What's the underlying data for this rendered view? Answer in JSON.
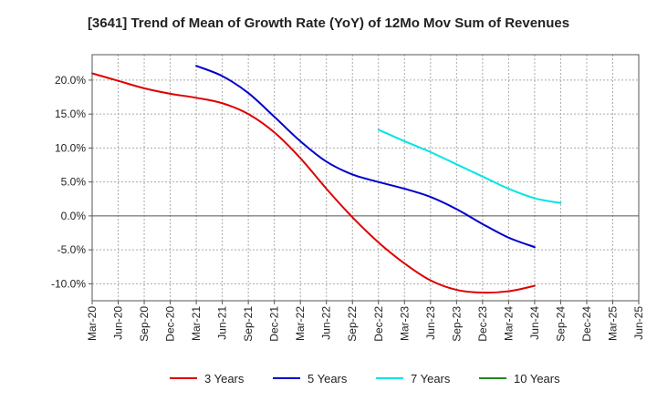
{
  "chart_data": {
    "type": "line",
    "title": "[3641]  Trend of Mean of Growth Rate (YoY) of 12Mo Mov Sum of Revenues",
    "xlabel": "",
    "ylabel": "",
    "ylim": [
      -12.5,
      23.75
    ],
    "y_ticks": [
      -10,
      -5,
      0,
      5,
      10,
      15,
      20
    ],
    "y_tick_labels": [
      "-10.0%",
      "-5.0%",
      "0.0%",
      "5.0%",
      "10.0%",
      "15.0%",
      "20.0%"
    ],
    "categories": [
      "Mar-20",
      "Jun-20",
      "Sep-20",
      "Dec-20",
      "Mar-21",
      "Jun-21",
      "Sep-21",
      "Dec-21",
      "Mar-22",
      "Jun-22",
      "Sep-22",
      "Dec-22",
      "Mar-23",
      "Jun-23",
      "Sep-23",
      "Dec-23",
      "Mar-24",
      "Jun-24",
      "Sep-24",
      "Dec-24",
      "Mar-25",
      "Jun-25"
    ],
    "grid": true,
    "legend_position": "bottom",
    "series": [
      {
        "name": "3 Years",
        "color": "#dd0000",
        "values": [
          21.0,
          19.9,
          18.8,
          18.0,
          17.4,
          16.6,
          15.0,
          12.3,
          8.5,
          4.0,
          -0.2,
          -3.9,
          -7.0,
          -9.5,
          -10.9,
          -11.3,
          -11.1,
          -10.3,
          null,
          null,
          null,
          null
        ]
      },
      {
        "name": "5 Years",
        "color": "#0000cc",
        "values": [
          null,
          null,
          null,
          null,
          22.1,
          20.6,
          18.1,
          14.6,
          11.0,
          8.0,
          6.1,
          5.0,
          4.0,
          2.8,
          1.0,
          -1.2,
          -3.2,
          -4.6,
          null,
          null,
          null,
          null
        ]
      },
      {
        "name": "7 Years",
        "color": "#00e5e5",
        "values": [
          null,
          null,
          null,
          null,
          null,
          null,
          null,
          null,
          null,
          null,
          null,
          12.7,
          11.0,
          9.4,
          7.6,
          5.8,
          4.0,
          2.6,
          1.9,
          null,
          null,
          null
        ]
      },
      {
        "name": "10 Years",
        "color": "#228b22",
        "values": [
          null,
          null,
          null,
          null,
          null,
          null,
          null,
          null,
          null,
          null,
          null,
          null,
          null,
          null,
          null,
          null,
          null,
          null,
          null,
          null,
          null,
          null
        ]
      }
    ]
  }
}
